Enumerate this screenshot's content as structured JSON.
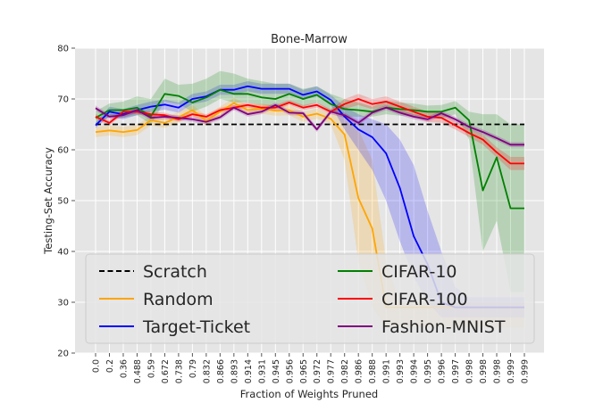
{
  "chart_data": {
    "type": "line",
    "title": "Bone-Marrow",
    "xlabel": "Fraction of Weights Pruned",
    "ylabel": "Testing-Set Accuracy",
    "ylim": [
      20,
      80
    ],
    "yticks": [
      20,
      30,
      40,
      50,
      60,
      70,
      80
    ],
    "grid": true,
    "legend_position": "bottom",
    "categories": [
      "0.0",
      "0.2",
      "0.36",
      "0.488",
      "0.59",
      "0.672",
      "0.738",
      "0.79",
      "0.832",
      "0.866",
      "0.893",
      "0.914",
      "0.931",
      "0.945",
      "0.956",
      "0.965",
      "0.972",
      "0.977",
      "0.982",
      "0.986",
      "0.988",
      "0.991",
      "0.993",
      "0.994",
      "0.995",
      "0.996",
      "0.997",
      "0.998",
      "0.998",
      "0.998",
      "0.999",
      "0.999"
    ],
    "series": [
      {
        "name": "Scratch",
        "color": "#000000",
        "dashed": true,
        "values": [
          65,
          65,
          65,
          65,
          65,
          65,
          65,
          65,
          65,
          65,
          65,
          65,
          65,
          65,
          65,
          65,
          65,
          65,
          65,
          65,
          65,
          65,
          65,
          65,
          65,
          65,
          65,
          65,
          65,
          65,
          65,
          65
        ],
        "lower": null,
        "upper": null
      },
      {
        "name": "Random",
        "color": "#ffa500",
        "dashed": false,
        "values": [
          63.5,
          63.8,
          63.5,
          63.9,
          65.8,
          65.3,
          66.4,
          67.8,
          65.7,
          67.5,
          69.2,
          67.8,
          68.1,
          67.7,
          67.8,
          66.5,
          67.1,
          66.1,
          63,
          50.5,
          44.5,
          29,
          29,
          29,
          29,
          29,
          29,
          29,
          29,
          29,
          29,
          29
        ],
        "lower": [
          62.5,
          62.8,
          62.5,
          62.9,
          64.8,
          64.3,
          65.4,
          66.8,
          64.7,
          66.5,
          68.2,
          66.8,
          67.1,
          66.7,
          66.8,
          65.5,
          66.1,
          65.1,
          58,
          38,
          29,
          25,
          25,
          25,
          25,
          25,
          25,
          25,
          25,
          25,
          25,
          25
        ],
        "upper": [
          64.5,
          64.8,
          64.5,
          64.9,
          66.8,
          66.3,
          67.4,
          68.8,
          66.7,
          68.5,
          70.2,
          68.8,
          69.1,
          68.7,
          68.8,
          67.5,
          68.1,
          67.1,
          67,
          64,
          58,
          38,
          30,
          30,
          30,
          30,
          30,
          30,
          30,
          30,
          30,
          30
        ]
      },
      {
        "name": "Target-Ticket",
        "color": "#0000ff",
        "dashed": false,
        "values": [
          64.8,
          67.5,
          67,
          67.8,
          68.5,
          68.9,
          68.3,
          70,
          70.5,
          71.8,
          71.8,
          72.5,
          72,
          72,
          72,
          70.8,
          71.5,
          69.8,
          66.5,
          64,
          62.5,
          59.3,
          52.5,
          43,
          37.5,
          30,
          29,
          29,
          29,
          29,
          29,
          29
        ],
        "lower": [
          64.3,
          66.5,
          66,
          66.8,
          67.5,
          67.9,
          67.3,
          69,
          69.5,
          70.8,
          70.8,
          71.5,
          71,
          71,
          71,
          69.8,
          70.5,
          68.8,
          64,
          60,
          56,
          50,
          42,
          35,
          30,
          27,
          27,
          27,
          27,
          27,
          27,
          27
        ],
        "upper": [
          65.3,
          68.5,
          68,
          68.8,
          69.5,
          69.9,
          69.3,
          71,
          71.5,
          72.8,
          72.8,
          73.5,
          73,
          73,
          73,
          71.8,
          72.5,
          70.8,
          68.5,
          67,
          66,
          65,
          62,
          57,
          48,
          40,
          33,
          31,
          31,
          31,
          31,
          31
        ]
      },
      {
        "name": "CIFAR-10",
        "color": "#008000",
        "dashed": false,
        "values": [
          66.3,
          67.8,
          67.8,
          68.3,
          66.6,
          71,
          70.6,
          69.3,
          70.3,
          71.8,
          71,
          71,
          70.3,
          70,
          71,
          70,
          70.8,
          69,
          68,
          67.8,
          67.5,
          68.3,
          68,
          67.8,
          67.5,
          67.5,
          68.3,
          65.8,
          52,
          58.5,
          48.5,
          48.5
        ],
        "lower": [
          65,
          66.5,
          66.3,
          66.8,
          65,
          69.5,
          69,
          67.5,
          68.5,
          70,
          69.3,
          69.3,
          68.8,
          68.5,
          69.5,
          68.5,
          69.3,
          67.5,
          66.5,
          66.5,
          66.5,
          67,
          66.7,
          66.5,
          66.3,
          66.2,
          67,
          62,
          40,
          46,
          32,
          32
        ],
        "upper": [
          67.6,
          69.1,
          69.5,
          70.5,
          70,
          74,
          72.8,
          73,
          74,
          75.5,
          75,
          74,
          73.5,
          73,
          73,
          72,
          72.5,
          71,
          70,
          69.3,
          68.5,
          69.6,
          69.3,
          69.1,
          68.7,
          68.8,
          69.6,
          67.5,
          67,
          67,
          65,
          65
        ]
      },
      {
        "name": "CIFAR-100",
        "color": "#ff0000",
        "dashed": false,
        "values": [
          66.5,
          65.3,
          67.5,
          67.5,
          67,
          66.8,
          66,
          67,
          66.5,
          67.8,
          68.3,
          68.8,
          68.3,
          68.3,
          69.3,
          68.3,
          68.8,
          67.5,
          69,
          70,
          69,
          69.5,
          68.5,
          67.5,
          66.5,
          66.3,
          64.8,
          63.3,
          62,
          59.5,
          57.3,
          57.3
        ],
        "lower": [
          66,
          64.8,
          67,
          67,
          66.5,
          66.3,
          65.5,
          66.5,
          66,
          67.3,
          67.8,
          68.3,
          67.8,
          67.8,
          68.8,
          67.8,
          68.3,
          67,
          68,
          68.8,
          68,
          68.5,
          67.5,
          66.5,
          65.5,
          65.3,
          64,
          62.5,
          61,
          58.5,
          56,
          56
        ],
        "upper": [
          67,
          65.8,
          68,
          68,
          67.5,
          67.3,
          66.5,
          67.5,
          67,
          68.3,
          68.8,
          69.3,
          68.8,
          68.8,
          69.8,
          68.8,
          69.3,
          68,
          70,
          71,
          70,
          70.5,
          69.5,
          68.5,
          67.5,
          67.3,
          65.6,
          64.1,
          63,
          60.5,
          58.6,
          58.6
        ]
      },
      {
        "name": "Fashion-MNIST",
        "color": "#800080",
        "dashed": false,
        "values": [
          68.2,
          66.5,
          66.8,
          67.8,
          66.3,
          66.5,
          66.3,
          66,
          65.5,
          66.4,
          68.3,
          67,
          67.5,
          68.8,
          67.3,
          67.2,
          64,
          67.5,
          66.8,
          65.3,
          67.3,
          68.3,
          67.3,
          66.5,
          66,
          67.2,
          66,
          64.5,
          63.5,
          62.3,
          61,
          61
        ],
        "lower": [
          67.7,
          66,
          66.3,
          67.3,
          65.8,
          66,
          65.8,
          65.5,
          65,
          65.9,
          67.8,
          66.5,
          67,
          68.3,
          66.8,
          66.7,
          63.5,
          67,
          66.3,
          64.8,
          66.8,
          67.8,
          66.8,
          66,
          65.5,
          66.7,
          65.5,
          64,
          63,
          61.8,
          60.5,
          60.5
        ],
        "upper": [
          68.7,
          67,
          67.3,
          68.3,
          66.8,
          67,
          66.8,
          66.5,
          66,
          66.9,
          68.8,
          67.5,
          68,
          69.3,
          67.8,
          67.7,
          64.5,
          68,
          67.3,
          65.8,
          67.8,
          68.8,
          67.8,
          67,
          66.5,
          67.7,
          66.5,
          65,
          64,
          62.8,
          61.5,
          61.5
        ]
      }
    ]
  }
}
